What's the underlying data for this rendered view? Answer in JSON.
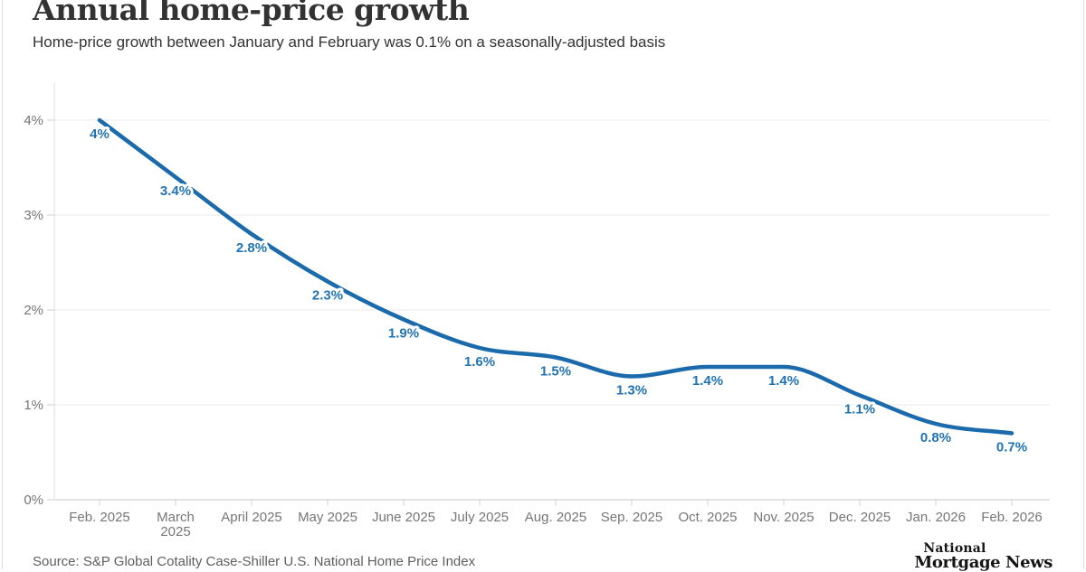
{
  "header": {
    "title": "Annual home-price growth",
    "subtitle": "Home-price growth between January and February was 0.1% on a seasonally-adjusted basis"
  },
  "chart_data": {
    "type": "line",
    "title": "Annual home-price growth",
    "categories": [
      "Feb. 2025",
      "March 2025",
      "April 2025",
      "May 2025",
      "June 2025",
      "July 2025",
      "Aug. 2025",
      "Sep. 2025",
      "Oct. 2025",
      "Nov. 2025",
      "Dec. 2025",
      "Jan. 2026",
      "Feb. 2026"
    ],
    "values": [
      4,
      3.4,
      2.8,
      2.3,
      1.9,
      1.6,
      1.5,
      1.3,
      1.4,
      1.4,
      1.1,
      0.8,
      0.7
    ],
    "data_labels": [
      "4%",
      "3.4%",
      "2.8%",
      "2.3%",
      "1.9%",
      "1.6%",
      "1.5%",
      "1.3%",
      "1.4%",
      "1.4%",
      "1.1%",
      "0.8%",
      "0.7%"
    ],
    "unit": "%",
    "xlabel": "",
    "ylabel": "",
    "ylim": [
      0,
      4
    ],
    "y_ticks": [
      "0%",
      "1%",
      "2%",
      "3%",
      "4%"
    ],
    "grid": true,
    "legend": "none",
    "wrap_tick_index": 1,
    "line_color": "#1a6aac",
    "data_label_color": "#2273b2",
    "axis_text_color": "#767676",
    "gridline_color": "#e9e9e9",
    "baseline_color": "#c7c7c7",
    "axis_line_color": "#dcdcdc",
    "tick_color": "#cfcfcf"
  },
  "footer": {
    "source": "Source: S&P Global Cotality Case-Shiller U.S. National Home Price Index",
    "logo_line1": "National",
    "logo_line2": "Mortgage News"
  }
}
